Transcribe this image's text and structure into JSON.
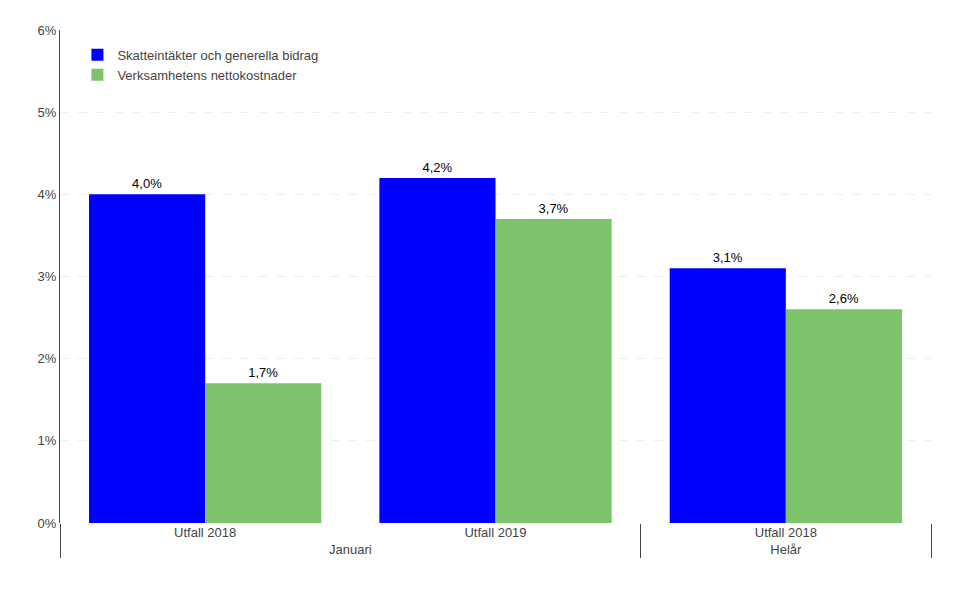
{
  "chart_data": {
    "type": "bar",
    "categories": [
      [
        "Januari",
        "Utfall 2018"
      ],
      [
        "Januari",
        "Utfall 2019"
      ],
      [
        "Helår",
        "Utfall 2018"
      ]
    ],
    "series": [
      {
        "name": "Skatteintäkter och generella bidrag",
        "color": "#0000FF",
        "values": [
          4.0,
          4.2,
          3.1
        ],
        "value_labels": [
          "4,0%",
          "4,2%",
          "3,1%"
        ]
      },
      {
        "name": "Verksamhetens nettokostnader",
        "color": "#7DC36B",
        "values": [
          1.7,
          3.7,
          2.6
        ],
        "value_labels": [
          "1,7%",
          "3,7%",
          "2,6%"
        ]
      }
    ],
    "ylim": [
      0,
      6
    ],
    "yticks": [
      {
        "value": 0,
        "label": "0%"
      },
      {
        "value": 1,
        "label": "1%"
      },
      {
        "value": 2,
        "label": "2%"
      },
      {
        "value": 3,
        "label": "3%"
      },
      {
        "value": 4,
        "label": "4%"
      },
      {
        "value": 5,
        "label": "5%"
      },
      {
        "value": 6,
        "label": "6%"
      }
    ],
    "grid": true,
    "legend": "upper left",
    "data_labels": true
  }
}
